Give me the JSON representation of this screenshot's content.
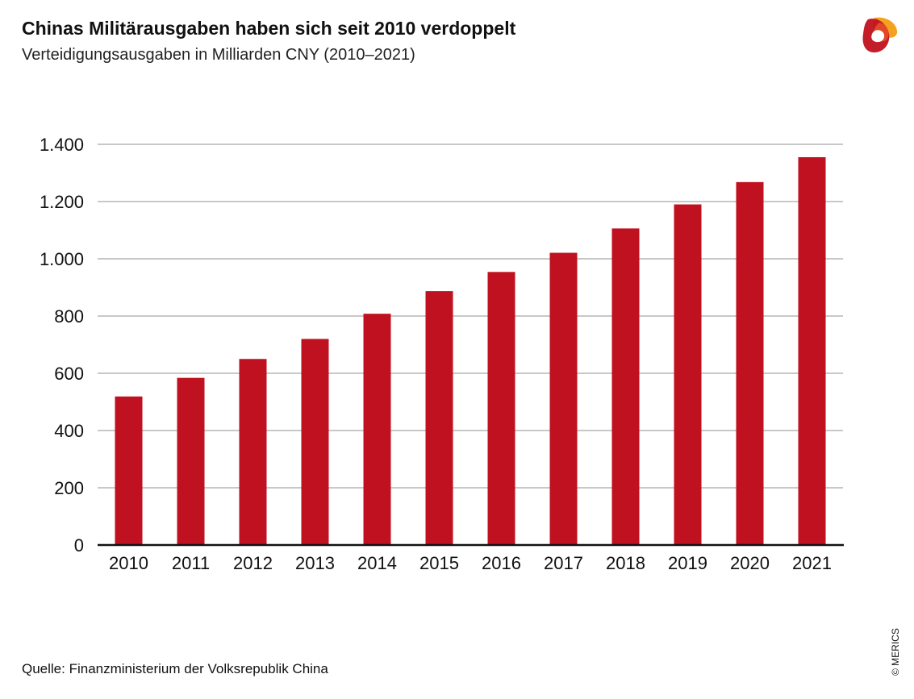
{
  "header": {
    "title": "Chinas Militärausgaben haben sich seit 2010 verdoppelt",
    "subtitle": "Verteidigungsausgaben in Milliarden CNY  (2010–2021)"
  },
  "footer": {
    "source": "Quelle: Finanzministerium der Volksrepublik China",
    "copyright": "© MERICS"
  },
  "brand": {
    "logo_icon": "merics-logo-icon",
    "colors": [
      "#c0111f",
      "#e8502a",
      "#f4a21d"
    ]
  },
  "chart_data": {
    "type": "bar",
    "title": "Chinas Militärausgaben haben sich seit 2010 verdoppelt",
    "subtitle": "Verteidigungsausgaben in Milliarden CNY  (2010–2021)",
    "xlabel": "",
    "ylabel": "",
    "categories": [
      "2010",
      "2011",
      "2012",
      "2013",
      "2014",
      "2015",
      "2016",
      "2017",
      "2018",
      "2019",
      "2020",
      "2021"
    ],
    "values": [
      519,
      584,
      650,
      720,
      808,
      887,
      954,
      1021,
      1106,
      1190,
      1268,
      1355
    ],
    "ylim": [
      0,
      1400
    ],
    "yticks": [
      0,
      200,
      400,
      600,
      800,
      1000,
      1200,
      1400
    ],
    "ytick_labels": [
      "0",
      "200",
      "400",
      "600",
      "800",
      "1.000",
      "1.200",
      "1.400"
    ],
    "bar_color": "#bf111f",
    "grid": true,
    "legend": "none"
  }
}
